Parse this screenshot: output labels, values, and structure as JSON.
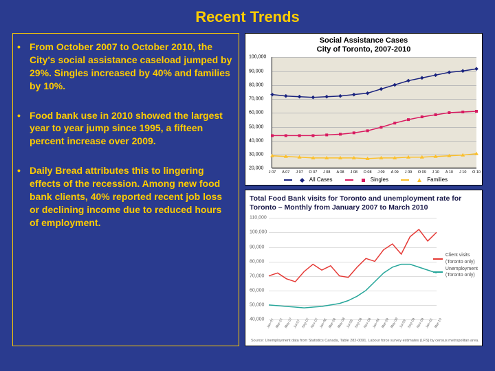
{
  "title": "Recent Trends",
  "bullets": [
    "From October 2007 to October 2010, the City's social assistance caseload jumped by 29%. Singles increased by 40% and families by 10%.",
    "Food bank use in 2010 showed the largest year to year jump since 1995, a fifteen percent increase over 2009.",
    "Daily Bread attributes this  to lingering effects of the recession. Among new food bank clients, 40% reported recent job loss or declining income due to reduced hours of employment."
  ],
  "chart1": {
    "title_l1": "Social Assistance Cases",
    "title_l2": "City of Toronto, 2007-2010",
    "ymin": 20000,
    "ymax": 100000,
    "ystep": 10000,
    "ylabels": [
      "20,000",
      "30,000",
      "40,000",
      "50,000",
      "60,000",
      "70,000",
      "80,000",
      "90,000",
      "100,000"
    ],
    "xlabels": [
      "J 07",
      "A 07",
      "J 07",
      "O 07",
      "J 08",
      "A 08",
      "J 08",
      "O 08",
      "J 09",
      "A 09",
      "J 09",
      "O 09",
      "J 10",
      "A 10",
      "J 10",
      "O 10"
    ],
    "series": {
      "all": {
        "color": "#1a237e",
        "marker": "diamond",
        "values": [
          73000,
          72000,
          71500,
          71000,
          71500,
          72000,
          73000,
          74000,
          77000,
          80000,
          83000,
          85000,
          87000,
          89000,
          90000,
          91500
        ]
      },
      "singles": {
        "color": "#d81b60",
        "marker": "square",
        "values": [
          43500,
          43500,
          43500,
          43500,
          44000,
          44500,
          45500,
          47000,
          49500,
          52500,
          55000,
          57000,
          58500,
          60000,
          60500,
          61000
        ]
      },
      "families": {
        "color": "#fbc02d",
        "marker": "triangle",
        "values": [
          29000,
          28500,
          28000,
          27500,
          27500,
          27500,
          27500,
          27000,
          27500,
          27500,
          28000,
          28000,
          28500,
          29000,
          29500,
          30500
        ]
      }
    },
    "legend": [
      {
        "label": "All Cases",
        "color": "#1a237e",
        "shape": "diamond"
      },
      {
        "label": "Singles",
        "color": "#d81b60",
        "shape": "square"
      },
      {
        "label": "Families",
        "color": "#fbc02d",
        "shape": "triangle"
      }
    ],
    "plot_bg": "#e8e4d8"
  },
  "chart2": {
    "title": "Total Food Bank visits for Toronto and unemployment rate for Toronto – Monthly from January 2007 to March 2010",
    "ymin": 40000,
    "ymax": 110000,
    "ystep": 10000,
    "ylabels": [
      "40,000",
      "50,000",
      "60,000",
      "70,000",
      "80,000",
      "90,000",
      "100,000",
      "110,000"
    ],
    "xlabels": [
      "Jan-07",
      "Mar-07",
      "May-07",
      "Jul-07",
      "Sep-07",
      "Nov-07",
      "Jan-08",
      "Mar-08",
      "May-08",
      "Jul-08",
      "Sep-08",
      "Nov-08",
      "Jan-09",
      "Mar-09",
      "May-09",
      "Jul-09",
      "Sep-09",
      "Nov-09",
      "Jan-10",
      "Mar-10"
    ],
    "series": {
      "client": {
        "color": "#e53935",
        "values": [
          70000,
          72000,
          68000,
          66000,
          73000,
          78000,
          74000,
          77000,
          70000,
          69000,
          76000,
          82000,
          80000,
          88000,
          92000,
          85000,
          97000,
          102000,
          94000,
          100000
        ]
      },
      "unemp": {
        "color": "#26a69a",
        "values": [
          50000,
          49500,
          49000,
          48500,
          48000,
          48500,
          49000,
          50000,
          51000,
          53000,
          56000,
          60000,
          66000,
          72000,
          76000,
          78000,
          78000,
          76000,
          74000,
          72000
        ]
      }
    },
    "legend": [
      {
        "l1": "Client visits",
        "l2": "(Toronto only)",
        "color": "#e53935"
      },
      {
        "l1": "Unemployment",
        "l2": "(Toronto only)",
        "color": "#26a69a"
      }
    ],
    "footnote": "Source: Unemployment data from Statistics Canada, Table 282-0091. Labour force survey estimates (LFS) by census metropolitan area."
  },
  "colors": {
    "bg": "#2a3b8f",
    "accent": "#ffcc00"
  }
}
